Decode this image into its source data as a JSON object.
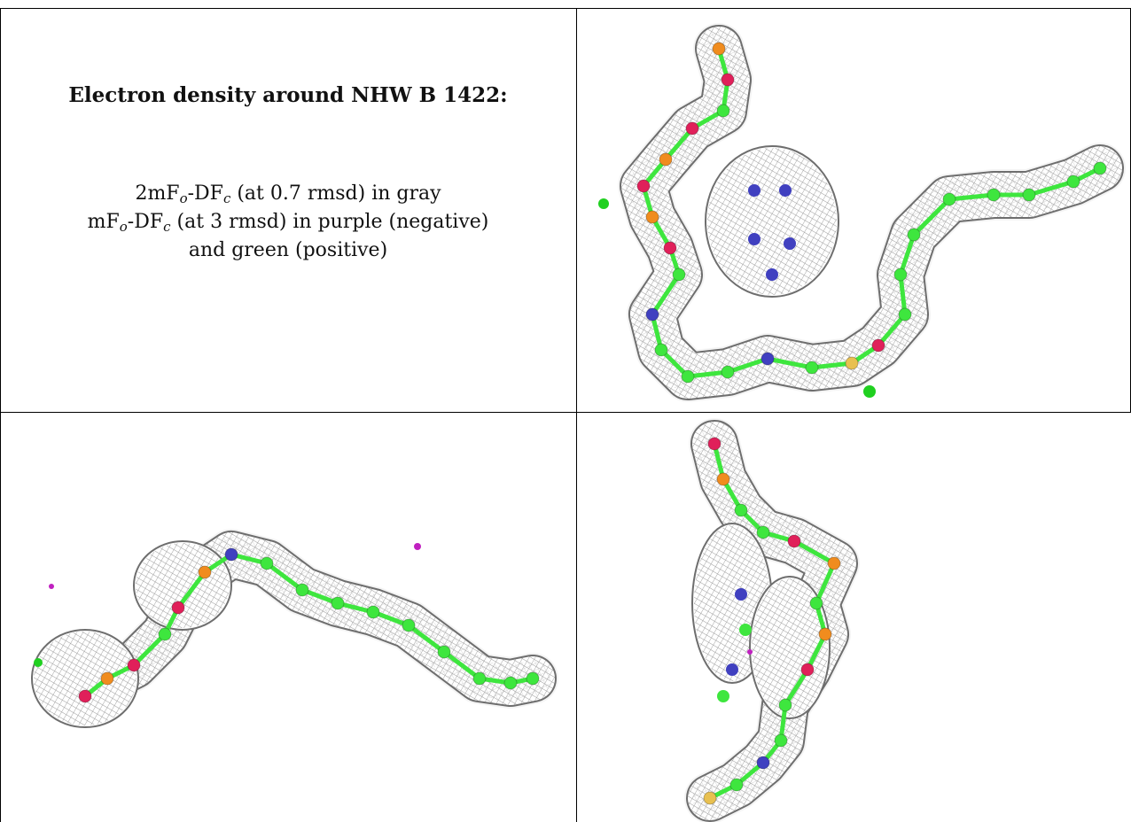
{
  "caption": {
    "title": "Electron density around NHW B 1422:",
    "line1_pre": "2mF",
    "line1_sub1": "o",
    "line1_mid": "-DF",
    "line1_sub2": "c",
    "line1_post": " (at 0.7 rmsd) in gray",
    "line2_pre": "mF",
    "line2_sub1": "o",
    "line2_mid": "-DF",
    "line2_sub2": "c",
    "line2_post": " (at 3 rmsd) in purple (negative)",
    "line3": "and green (positive)"
  },
  "colors": {
    "mesh": "#9a9a9a",
    "carbon": "#3ee63e",
    "oxygen": "#e0205a",
    "phosphorus": "#f08c1e",
    "nitrogen": "#4040c0",
    "sulfur": "#e8c050",
    "negative": "#c020c0",
    "positive": "#20d020"
  },
  "panels": [
    {
      "view": "top-right"
    },
    {
      "view": "bottom-left"
    },
    {
      "view": "bottom-right"
    }
  ]
}
